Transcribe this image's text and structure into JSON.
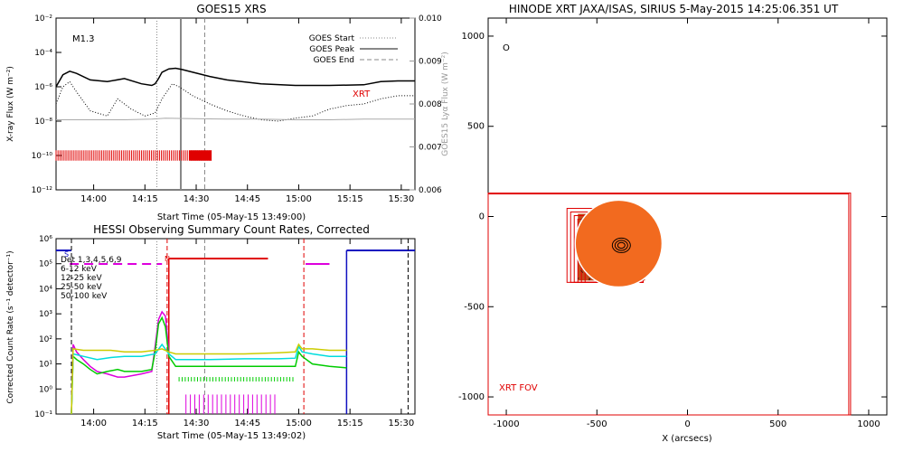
{
  "chart_data": [
    {
      "type": "line",
      "title": "GOES15 XRS",
      "xlabel": "Start Time (05-May-15 13:49:00)",
      "ylabel": "X-ray Flux (W m⁻²)",
      "y2label": "GOES15 Lyα Flux (W m⁻²)",
      "ylog": true,
      "xlim": [
        0,
        105
      ],
      "ylim": [
        1e-12,
        0.01
      ],
      "y2lim": [
        0.006,
        0.01
      ],
      "xticks": [
        "14:00",
        "14:15",
        "14:30",
        "14:45",
        "15:00",
        "15:15",
        "15:30"
      ],
      "yticks": [
        "10⁻¹²",
        "10⁻¹⁰",
        "10⁻⁸",
        "10⁻⁶",
        "10⁻⁴",
        "10⁻²"
      ],
      "y2ticks": [
        "0.006",
        "0.007",
        "0.008",
        "0.009",
        "0.010"
      ],
      "annotation": "M1.3",
      "xrt_label": "XRT",
      "legend": [
        {
          "name": "GOES Start",
          "style": "dotted"
        },
        {
          "name": "GOES Peak",
          "style": "solid"
        },
        {
          "name": "GOES End",
          "style": "dashed"
        }
      ],
      "markers": {
        "start_min": 29.5,
        "peak_min": 36.5,
        "end_min": 43.5
      },
      "xrt_obs_range": [
        0,
        45.5
      ],
      "series": [
        {
          "color": "#000000",
          "style": "solid",
          "x": [
            0,
            2,
            4,
            6,
            10,
            15,
            20,
            25,
            28,
            29,
            30,
            31,
            33,
            35,
            37,
            40,
            45,
            50,
            60,
            70,
            80,
            90,
            95,
            100,
            105
          ],
          "y": [
            1e-06,
            5e-06,
            8e-06,
            6e-06,
            2.5e-06,
            2e-06,
            3e-06,
            1.5e-06,
            1.2e-06,
            1.5e-06,
            3e-06,
            7e-06,
            1.1e-05,
            1.2e-05,
            1e-05,
            7e-06,
            4e-06,
            2.5e-06,
            1.5e-06,
            1.2e-06,
            1.2e-06,
            1.3e-06,
            2e-06,
            2.2e-06,
            2.2e-06
          ]
        },
        {
          "color": "#000000",
          "style": "dotted",
          "x": [
            0,
            2,
            4,
            6,
            10,
            15,
            18,
            22,
            26,
            29,
            31,
            34,
            36,
            40,
            45,
            50,
            55,
            60,
            65,
            70,
            75,
            80,
            85,
            90,
            95,
            100,
            105
          ],
          "y": [
            1e-07,
            1e-06,
            2e-06,
            5e-07,
            4e-08,
            2e-08,
            2e-07,
            5e-08,
            2e-08,
            3e-08,
            2e-07,
            1.5e-06,
            1e-06,
            3e-07,
            1e-07,
            4e-08,
            2e-08,
            1.2e-08,
            1e-08,
            1.5e-08,
            2e-08,
            5e-08,
            8e-08,
            1e-07,
            2e-07,
            3e-07,
            3e-07
          ]
        },
        {
          "color": "#aaaaaa",
          "style": "solid",
          "x": [
            0,
            10,
            20,
            28,
            32,
            40,
            50,
            60,
            70,
            80,
            90,
            100,
            105
          ],
          "y": [
            1.2e-08,
            1.2e-08,
            1.2e-08,
            1.3e-08,
            1.5e-08,
            1.4e-08,
            1.3e-08,
            1.3e-08,
            1.2e-08,
            1.2e-08,
            1.3e-08,
            1.3e-08,
            1.3e-08
          ]
        }
      ]
    },
    {
      "type": "line",
      "title": "HESSI Observing Summary Count Rates, Corrected",
      "xlabel": "Start Time (05-May-15 13:49:02)",
      "ylabel": "Corrected Count Rate (s⁻¹ detector⁻¹)",
      "ylog": true,
      "xlim": [
        0,
        105
      ],
      "ylim": [
        0.1,
        1000000.0
      ],
      "xticks": [
        "14:00",
        "14:15",
        "14:30",
        "14:45",
        "15:00",
        "15:15",
        "15:30"
      ],
      "yticks": [
        "10⁻¹",
        "10⁰",
        "10¹",
        "10²",
        "10³",
        "10⁴",
        "10⁵",
        "10⁶"
      ],
      "legend": [
        {
          "name": "Det 1,3,4,5,6,9",
          "color": "#000000"
        },
        {
          "name": "6-12 keV",
          "color": "#dd00dd"
        },
        {
          "name": "12-25 keV",
          "color": "#00cc00"
        },
        {
          "name": "25-50 keV",
          "color": "#00dddd"
        },
        {
          "name": "50-100 keV",
          "color": "#cccc00"
        }
      ],
      "flags": {
        "S": "S",
        "N": "N"
      },
      "markers": {
        "start_min": 29.5,
        "peak_min": 36.5,
        "end_min": 43.5,
        "red_solid": 33,
        "red_dashed_left": 32.5,
        "red_dashed_right": 72.5,
        "black_dashed_left": 4.5,
        "black_dashed_right": 103,
        "night_start": 85
      },
      "series": [
        {
          "name": "6-12 keV",
          "color": "#dd00dd",
          "x": [
            4.5,
            5,
            6,
            8,
            10,
            12,
            15,
            18,
            20,
            25,
            28,
            29,
            30,
            31,
            32,
            33
          ],
          "y": [
            0.1,
            60,
            30,
            15,
            8,
            5,
            4,
            3,
            3,
            4,
            5,
            50,
            600,
            1200,
            800,
            30
          ]
        },
        {
          "name": "12-25 keV",
          "color": "#00cc00",
          "x": [
            4.5,
            5,
            6,
            8,
            10,
            12,
            15,
            18,
            20,
            25,
            28,
            29,
            30,
            31,
            32,
            33,
            35,
            70,
            71,
            72,
            75,
            80,
            85
          ],
          "y": [
            0.1,
            20,
            15,
            10,
            6,
            4,
            5,
            6,
            5,
            5,
            6,
            30,
            400,
            700,
            300,
            20,
            8,
            8,
            30,
            20,
            10,
            8,
            7
          ]
        },
        {
          "name": "25-50 keV",
          "color": "#00dddd",
          "x": [
            4.5,
            5,
            8,
            12,
            16,
            20,
            25,
            29,
            31,
            33,
            35,
            45,
            55,
            65,
            70,
            71,
            72,
            75,
            80,
            85
          ],
          "y": [
            0.1,
            25,
            20,
            15,
            18,
            20,
            20,
            25,
            60,
            25,
            15,
            15,
            16,
            16,
            17,
            50,
            30,
            25,
            20,
            20
          ]
        },
        {
          "name": "50-100 keV",
          "color": "#cccc00",
          "x": [
            4.5,
            5,
            8,
            12,
            16,
            20,
            25,
            29,
            31,
            33,
            35,
            45,
            55,
            65,
            70,
            71,
            72,
            75,
            80,
            85
          ],
          "y": [
            0.1,
            40,
            35,
            35,
            35,
            30,
            30,
            35,
            40,
            30,
            25,
            25,
            25,
            28,
            30,
            60,
            40,
            40,
            35,
            35
          ]
        }
      ]
    },
    {
      "type": "scatter",
      "title": "HINODE XRT JAXA/ISAS, SIRIUS  5-May-2015 14:25:06.351 UT",
      "xlabel": "X (arcsecs)",
      "xlim": [
        -1100,
        1100
      ],
      "ylim": [
        -1100,
        1100
      ],
      "xticks": [
        "-1000",
        "-500",
        "0",
        "500",
        "1000"
      ],
      "yticks": [
        "-1000",
        "-500",
        "0",
        "500",
        "1000"
      ],
      "fov_label": "XRT FOV",
      "corner_mark": "O",
      "fov_box": {
        "x": [
          -1100,
          900
        ],
        "y": [
          -1100,
          130
        ]
      },
      "fov_box_inner": {
        "x": [
          -1100,
          890
        ],
        "y": [
          -1100,
          125
        ]
      },
      "image_center": [
        -420,
        -170
      ],
      "image_size": 370
    }
  ]
}
